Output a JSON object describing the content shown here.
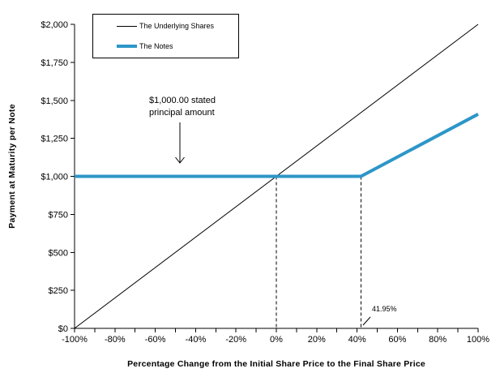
{
  "chart_data": {
    "type": "line",
    "title": "",
    "xlabel": "Percentage Change from the Initial Share Price to the Final Share Price",
    "ylabel": "Payment at Maturity per Note",
    "xlim": [
      -100,
      100
    ],
    "ylim": [
      0,
      2000
    ],
    "x_minor_tick_step": 10,
    "x_major_ticks": [
      -100,
      -80,
      -60,
      -40,
      -20,
      0,
      20,
      40,
      60,
      80,
      100
    ],
    "x_tick_labels": [
      "-100%",
      "-80%",
      "-60%",
      "-40%",
      "-20%",
      "0%",
      "20%",
      "40%",
      "60%",
      "80%",
      "100%"
    ],
    "y_ticks": [
      0,
      250,
      500,
      750,
      1000,
      1250,
      1500,
      1750,
      2000
    ],
    "y_tick_labels": [
      "$0",
      "$250",
      "$500",
      "$750",
      "$1,000",
      "$1,250",
      "$1,500",
      "$1,750",
      "$2,000"
    ],
    "grid": false,
    "legend_position": "top-left-inside",
    "series": [
      {
        "name": "The Underlying Shares",
        "color": "#000000",
        "stroke_width": 1,
        "points": [
          [
            -100,
            0
          ],
          [
            100,
            2000
          ]
        ]
      },
      {
        "name": "The Notes",
        "color": "#2D96C8",
        "stroke_width": 4,
        "points": [
          [
            -100,
            1000
          ],
          [
            41.95,
            1000
          ],
          [
            100,
            1409
          ]
        ]
      }
    ],
    "reference_lines": [
      {
        "x": 0,
        "y_from": 0,
        "y_to": 1000,
        "style": "dashed",
        "color": "#000000"
      },
      {
        "x": 41.95,
        "y_from": 0,
        "y_to": 1000,
        "style": "dashed",
        "color": "#000000"
      }
    ],
    "annotations": {
      "principal_line1": "$1,000.00 stated",
      "principal_line2": "principal amount",
      "threshold": "41.95%"
    }
  }
}
